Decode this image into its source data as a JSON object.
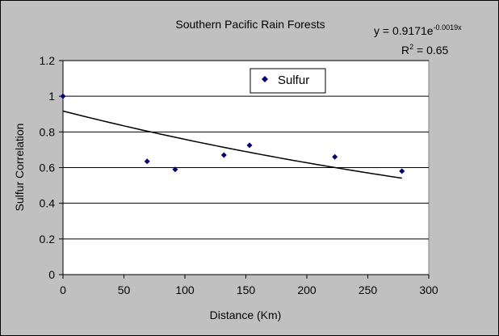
{
  "chart_data": {
    "type": "scatter",
    "title": "Southern Pacific Rain Forests",
    "xlabel": "Distance (Km)",
    "ylabel": "Sulfur Correlation",
    "xlim": [
      0,
      300
    ],
    "ylim": [
      0,
      1.2
    ],
    "x_ticks": [
      "0",
      "50",
      "100",
      "150",
      "200",
      "250",
      "300"
    ],
    "y_ticks": [
      "0",
      "0.2",
      "0.4",
      "0.6",
      "0.8",
      "1",
      "1.2"
    ],
    "grid": "horizontal",
    "legend_position": "top-center",
    "series": [
      {
        "name": "Sulfur",
        "color": "#000080",
        "marker": "diamond",
        "x": [
          0,
          69,
          92,
          132,
          153,
          223,
          278
        ],
        "y": [
          1.0,
          0.635,
          0.59,
          0.67,
          0.725,
          0.66,
          0.58
        ]
      }
    ],
    "trendline": {
      "equation_prefix": "y = 0.9171e",
      "equation_exponent": "-0.0019x",
      "r2_prefix": "R",
      "r2_sup": "2",
      "r2_suffix": " = 0.65",
      "a": 0.9171,
      "b": -0.0019,
      "x_range": [
        0,
        278
      ]
    }
  }
}
